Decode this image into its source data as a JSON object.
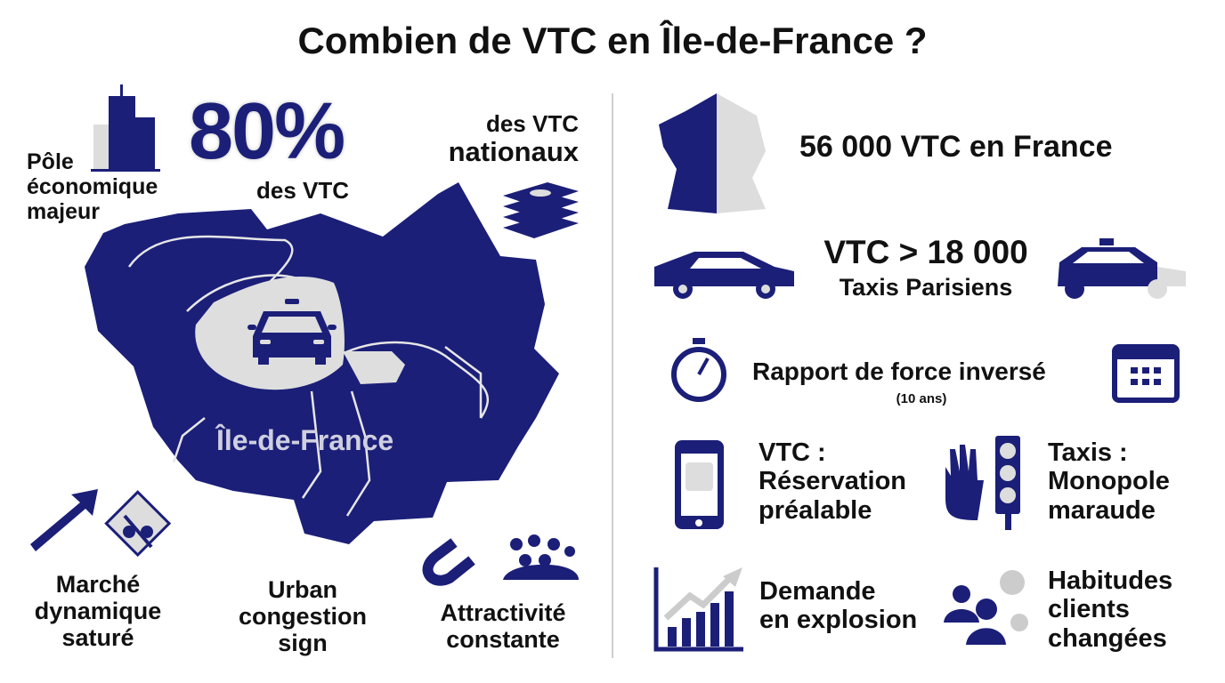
{
  "title": "Combien de VTC en Île-de-France ?",
  "colors": {
    "navy": "#1b1f78",
    "grey": "#d9d9d9",
    "text": "#111111"
  },
  "left": {
    "pole": [
      "Pôle",
      "économique",
      "majeur"
    ],
    "percent": "80%",
    "percent_sub": "des VTC",
    "national": [
      "des VTC",
      "nationaux"
    ],
    "map_label": "Île-de-France",
    "marche": [
      "Marché",
      "dynamique",
      "saturé"
    ],
    "urban": [
      "Urban",
      "congestion",
      "sign"
    ],
    "attract": [
      "Attractivité",
      "constante"
    ],
    "icons": [
      "building-icon",
      "money-stack-icon",
      "taxi-icon",
      "arrow-up-icon",
      "no-traffic-sign-icon",
      "magnet-icon",
      "crowd-icon"
    ]
  },
  "right": {
    "france": "56 000 VTC en France",
    "vtc_vs": "VTC > 18 000",
    "taxis": "Taxis Parisiens",
    "rapport": "Rapport de force inversé",
    "rapport_sub": "(10 ans)",
    "vtc_res": [
      "VTC :",
      "Réservation",
      "préalable"
    ],
    "taxi_mono": [
      "Taxis :",
      "Monopole",
      "maraude"
    ],
    "demande": [
      "Demande",
      "en explosion"
    ],
    "habitudes": [
      "Habitudes",
      "clients",
      "changées"
    ],
    "icons": [
      "france-map-icon",
      "car-icon",
      "taxi-icon",
      "stopwatch-icon",
      "calendar-icon",
      "smartphone-icon",
      "hand-icon",
      "traffic-light-icon",
      "growth-chart-icon",
      "users-gears-icon"
    ]
  }
}
